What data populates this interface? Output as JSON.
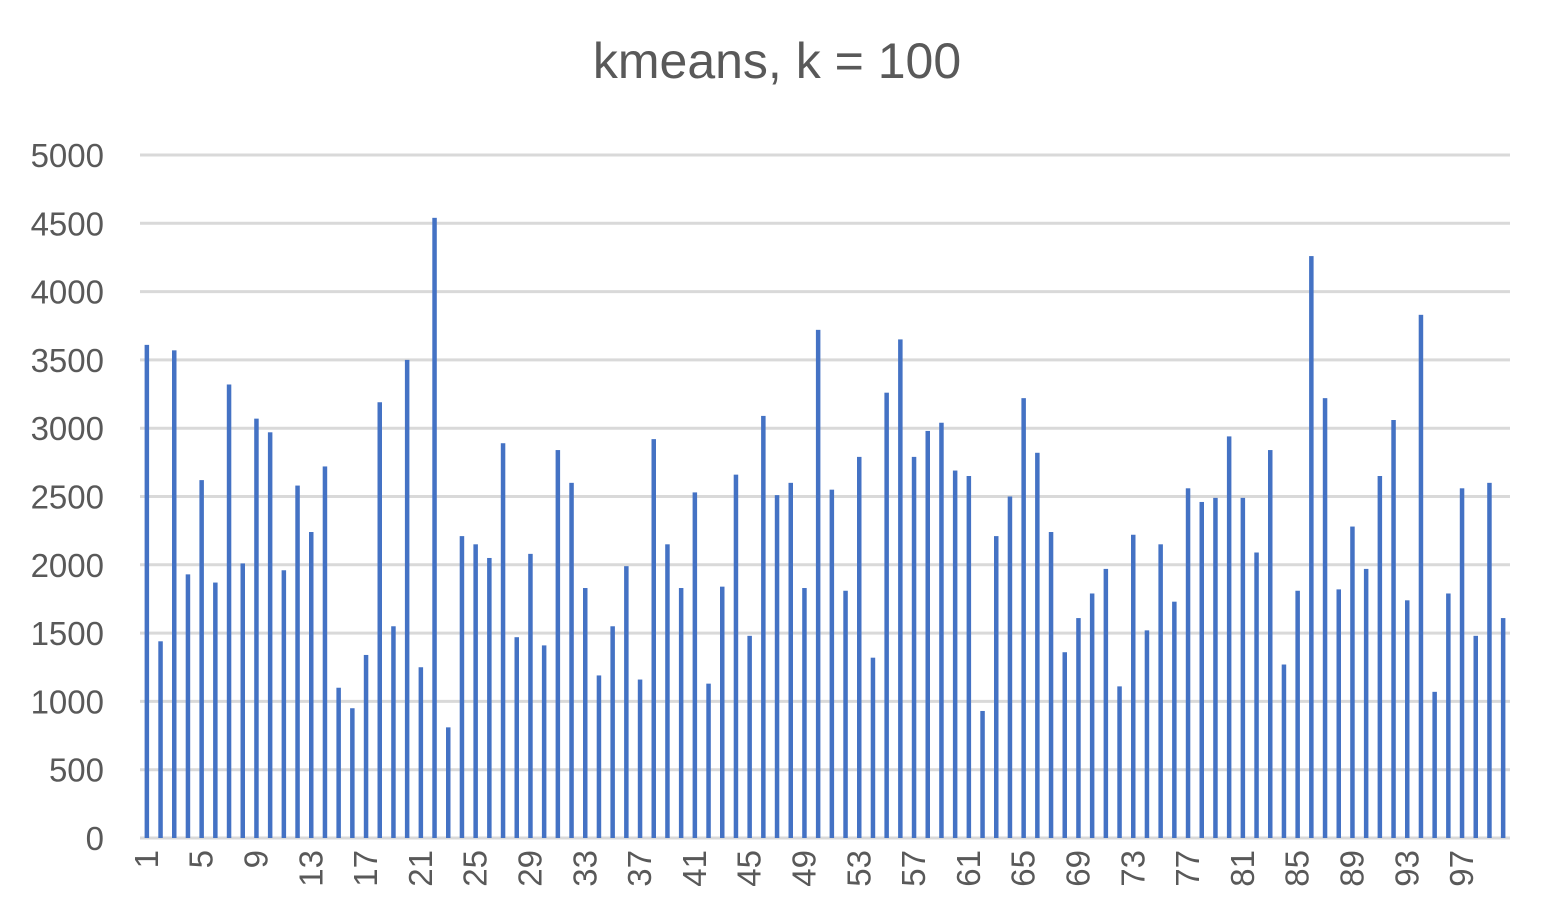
{
  "chart_data": {
    "type": "bar",
    "title": "kmeans, k = 100",
    "xlabel": "",
    "ylabel": "",
    "ylim": [
      0,
      5000
    ],
    "y_ticks": [
      0,
      500,
      1000,
      1500,
      2000,
      2500,
      3000,
      3500,
      4000,
      4500,
      5000
    ],
    "grid": true,
    "bar_color": "#4472c4",
    "grid_color": "#d9d9d9",
    "categories": [
      1,
      2,
      3,
      4,
      5,
      6,
      7,
      8,
      9,
      10,
      11,
      12,
      13,
      14,
      15,
      16,
      17,
      18,
      19,
      20,
      21,
      22,
      23,
      24,
      25,
      26,
      27,
      28,
      29,
      30,
      31,
      32,
      33,
      34,
      35,
      36,
      37,
      38,
      39,
      40,
      41,
      42,
      43,
      44,
      45,
      46,
      47,
      48,
      49,
      50,
      51,
      52,
      53,
      54,
      55,
      56,
      57,
      58,
      59,
      60,
      61,
      62,
      63,
      64,
      65,
      66,
      67,
      68,
      69,
      70,
      71,
      72,
      73,
      74,
      75,
      76,
      77,
      78,
      79,
      80,
      81,
      82,
      83,
      84,
      85,
      86,
      87,
      88,
      89,
      90,
      91,
      92,
      93,
      94,
      95,
      96,
      97,
      98,
      99,
      100
    ],
    "x_tick_labels": [
      "1",
      "5",
      "9",
      "13",
      "17",
      "21",
      "25",
      "29",
      "33",
      "37",
      "41",
      "45",
      "49",
      "53",
      "57",
      "61",
      "65",
      "69",
      "73",
      "77",
      "81",
      "85",
      "89",
      "93",
      "97"
    ],
    "values": [
      3610,
      1440,
      3570,
      1930,
      2620,
      1870,
      3320,
      2010,
      3070,
      2970,
      1960,
      2580,
      2240,
      2720,
      1100,
      950,
      1340,
      3190,
      1550,
      3500,
      1250,
      4540,
      810,
      2210,
      2150,
      2050,
      2890,
      1470,
      2080,
      1410,
      2840,
      2600,
      1830,
      1190,
      1550,
      1990,
      1160,
      2920,
      2150,
      1830,
      2530,
      1130,
      1840,
      2660,
      1480,
      3090,
      2510,
      2600,
      1830,
      3720,
      2550,
      1810,
      2790,
      1320,
      3260,
      3650,
      2790,
      2980,
      3040,
      2690,
      2650,
      930,
      2210,
      2500,
      3220,
      2820,
      2240,
      1360,
      1610,
      1790,
      1970,
      1110,
      2220,
      1520,
      2150,
      1730,
      2560,
      2460,
      2490,
      2940,
      2490,
      2090,
      2840,
      1270,
      1810,
      4260,
      3220,
      1820,
      2280,
      1970,
      2650,
      3060,
      1740,
      3830,
      1070,
      1790,
      2560,
      1480,
      2600,
      1610
    ]
  }
}
